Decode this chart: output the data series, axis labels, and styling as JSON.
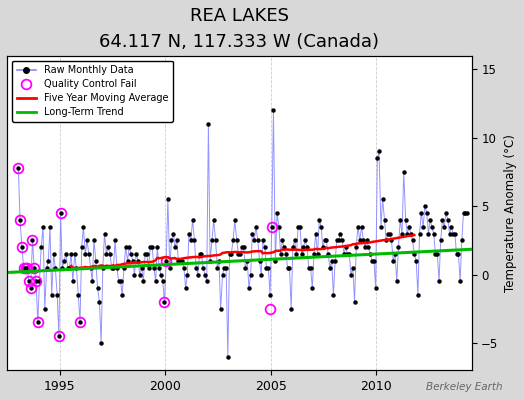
{
  "title": "REA LAKES",
  "subtitle": "64.117 N, 117.333 W (Canada)",
  "ylabel": "Temperature Anomaly (°C)",
  "watermark": "Berkeley Earth",
  "ylim": [
    -7,
    16
  ],
  "yticks": [
    -5,
    0,
    5,
    10,
    15
  ],
  "xlim": [
    1992.5,
    2014.5
  ],
  "xticks": [
    1995,
    2000,
    2005,
    2010
  ],
  "bg_color": "#d8d8d8",
  "plot_bg_color": "#ffffff",
  "raw_line_color": "#8888ff",
  "raw_marker_color": "#000000",
  "qc_fail_color": "#ff00ff",
  "moving_avg_color": "#ff0000",
  "trend_color": "#00bb00",
  "grid_color": "#cccccc",
  "title_fontsize": 13,
  "subtitle_fontsize": 10,
  "raw_data_times": [
    1993.04,
    1993.12,
    1993.21,
    1993.29,
    1993.38,
    1993.46,
    1993.54,
    1993.62,
    1993.71,
    1993.79,
    1993.88,
    1993.96,
    1994.04,
    1994.12,
    1994.21,
    1994.29,
    1994.38,
    1994.46,
    1994.54,
    1994.62,
    1994.71,
    1994.79,
    1994.88,
    1994.96,
    1995.04,
    1995.12,
    1995.21,
    1995.29,
    1995.38,
    1995.46,
    1995.54,
    1995.62,
    1995.71,
    1995.79,
    1995.88,
    1995.96,
    1996.04,
    1996.12,
    1996.21,
    1996.29,
    1996.38,
    1996.46,
    1996.54,
    1996.62,
    1996.71,
    1996.79,
    1996.88,
    1996.96,
    1997.04,
    1997.12,
    1997.21,
    1997.29,
    1997.38,
    1997.46,
    1997.54,
    1997.62,
    1997.71,
    1997.79,
    1997.88,
    1997.96,
    1998.04,
    1998.12,
    1998.21,
    1998.29,
    1998.38,
    1998.46,
    1998.54,
    1998.62,
    1998.71,
    1998.79,
    1998.88,
    1998.96,
    1999.04,
    1999.12,
    1999.21,
    1999.29,
    1999.38,
    1999.46,
    1999.54,
    1999.62,
    1999.71,
    1999.79,
    1999.88,
    1999.96,
    2000.04,
    2000.12,
    2000.21,
    2000.29,
    2000.38,
    2000.46,
    2000.54,
    2000.62,
    2000.71,
    2000.79,
    2000.88,
    2000.96,
    2001.04,
    2001.12,
    2001.21,
    2001.29,
    2001.38,
    2001.46,
    2001.54,
    2001.62,
    2001.71,
    2001.79,
    2001.88,
    2001.96,
    2002.04,
    2002.12,
    2002.21,
    2002.29,
    2002.38,
    2002.46,
    2002.54,
    2002.62,
    2002.71,
    2002.79,
    2002.88,
    2002.96,
    2003.04,
    2003.12,
    2003.21,
    2003.29,
    2003.38,
    2003.46,
    2003.54,
    2003.62,
    2003.71,
    2003.79,
    2003.88,
    2003.96,
    2004.04,
    2004.12,
    2004.21,
    2004.29,
    2004.38,
    2004.46,
    2004.54,
    2004.62,
    2004.71,
    2004.79,
    2004.88,
    2004.96,
    2005.04,
    2005.12,
    2005.21,
    2005.29,
    2005.38,
    2005.46,
    2005.54,
    2005.62,
    2005.71,
    2005.79,
    2005.88,
    2005.96,
    2006.04,
    2006.12,
    2006.21,
    2006.29,
    2006.38,
    2006.46,
    2006.54,
    2006.62,
    2006.71,
    2006.79,
    2006.88,
    2006.96,
    2007.04,
    2007.12,
    2007.21,
    2007.29,
    2007.38,
    2007.46,
    2007.54,
    2007.62,
    2007.71,
    2007.79,
    2007.88,
    2007.96,
    2008.04,
    2008.12,
    2008.21,
    2008.29,
    2008.38,
    2008.46,
    2008.54,
    2008.62,
    2008.71,
    2008.79,
    2008.88,
    2008.96,
    2009.04,
    2009.12,
    2009.21,
    2009.29,
    2009.38,
    2009.46,
    2009.54,
    2009.62,
    2009.71,
    2009.79,
    2009.88,
    2009.96,
    2010.04,
    2010.12,
    2010.21,
    2010.29,
    2010.38,
    2010.46,
    2010.54,
    2010.62,
    2010.71,
    2010.79,
    2010.88,
    2010.96,
    2011.04,
    2011.12,
    2011.21,
    2011.29,
    2011.38,
    2011.46,
    2011.54,
    2011.62,
    2011.71,
    2011.79,
    2011.88,
    2011.96,
    2012.04,
    2012.12,
    2012.21,
    2012.29,
    2012.38,
    2012.46,
    2012.54,
    2012.62,
    2012.71,
    2012.79,
    2012.88,
    2012.96,
    2013.04,
    2013.12,
    2013.21,
    2013.29,
    2013.38,
    2013.46,
    2013.54,
    2013.62,
    2013.71,
    2013.79,
    2013.88,
    2013.96,
    2014.04,
    2014.12,
    2014.21,
    2014.29
  ],
  "raw_data_values": [
    7.8,
    4.0,
    2.0,
    0.5,
    0.5,
    0.5,
    -0.5,
    -1.0,
    2.5,
    0.5,
    -0.5,
    -3.5,
    -0.5,
    2.0,
    3.5,
    -2.5,
    0.5,
    1.0,
    3.5,
    -1.5,
    1.5,
    0.5,
    -1.5,
    -4.5,
    4.5,
    0.5,
    1.0,
    1.5,
    0.5,
    0.5,
    1.5,
    -0.5,
    1.5,
    0.5,
    -1.5,
    -3.5,
    2.0,
    3.5,
    1.5,
    2.5,
    1.5,
    0.5,
    -0.5,
    2.5,
    1.0,
    -1.0,
    -2.0,
    -5.0,
    0.5,
    3.0,
    1.5,
    2.0,
    1.5,
    0.5,
    0.5,
    2.5,
    0.5,
    -0.5,
    -0.5,
    -1.5,
    0.5,
    2.0,
    1.0,
    2.0,
    1.5,
    1.0,
    0.0,
    1.5,
    1.0,
    0.0,
    0.5,
    -0.5,
    1.5,
    1.5,
    0.5,
    2.0,
    2.0,
    0.5,
    -0.5,
    2.0,
    0.5,
    0.0,
    -0.5,
    -2.0,
    1.0,
    5.5,
    0.5,
    2.5,
    3.0,
    2.0,
    2.5,
    1.0,
    1.0,
    1.0,
    0.5,
    -1.0,
    0.0,
    3.0,
    2.5,
    4.0,
    2.5,
    0.5,
    0.0,
    1.5,
    1.5,
    0.5,
    0.0,
    -0.5,
    11.0,
    1.0,
    2.5,
    4.0,
    2.5,
    0.5,
    1.0,
    -2.5,
    0.0,
    0.5,
    0.5,
    -6.0,
    1.5,
    1.5,
    2.5,
    4.0,
    2.5,
    1.5,
    1.5,
    2.0,
    2.0,
    0.5,
    1.0,
    -1.0,
    0.0,
    3.0,
    2.5,
    3.5,
    2.5,
    1.0,
    0.0,
    2.5,
    2.0,
    0.5,
    0.5,
    -1.5,
    3.5,
    12.0,
    1.0,
    4.5,
    3.5,
    1.5,
    2.5,
    2.0,
    1.5,
    0.5,
    0.5,
    -2.5,
    2.0,
    2.5,
    1.5,
    3.5,
    3.5,
    1.5,
    2.0,
    2.5,
    2.0,
    0.5,
    0.5,
    -1.0,
    1.5,
    3.0,
    1.5,
    4.0,
    3.5,
    2.0,
    2.5,
    2.5,
    1.5,
    0.5,
    1.0,
    -1.5,
    1.0,
    2.5,
    2.5,
    3.0,
    2.5,
    1.5,
    2.0,
    1.5,
    1.5,
    0.0,
    0.5,
    -2.0,
    2.0,
    3.5,
    2.5,
    3.5,
    2.5,
    2.0,
    2.5,
    2.0,
    1.5,
    1.0,
    1.0,
    -1.0,
    8.5,
    9.0,
    3.5,
    5.5,
    4.0,
    2.5,
    3.0,
    3.0,
    2.5,
    1.0,
    1.5,
    -0.5,
    2.0,
    4.0,
    3.0,
    7.5,
    4.0,
    3.0,
    3.5,
    3.0,
    2.5,
    1.5,
    1.0,
    -1.5,
    3.0,
    4.5,
    3.5,
    5.0,
    4.5,
    3.0,
    4.0,
    3.5,
    3.0,
    1.5,
    1.5,
    -0.5,
    2.5,
    4.0,
    3.5,
    4.5,
    4.0,
    3.0,
    3.5,
    3.0,
    3.0,
    1.5,
    1.5,
    -0.5,
    2.5,
    4.5,
    4.5,
    4.5
  ],
  "qc_fail_times": [
    1993.04,
    1993.12,
    1993.21,
    1993.29,
    1993.38,
    1993.46,
    1993.54,
    1993.62,
    1993.71,
    1993.79,
    1993.88,
    1993.96,
    1994.96,
    1995.04,
    1995.96,
    1999.96,
    2000.04,
    2004.96,
    2005.04
  ],
  "qc_fail_values": [
    7.8,
    4.0,
    2.0,
    0.5,
    0.5,
    0.5,
    -0.5,
    -1.0,
    2.5,
    0.5,
    -0.5,
    -3.5,
    -4.5,
    4.5,
    -3.5,
    -2.0,
    1.0,
    -2.5,
    3.5
  ],
  "trend_x": [
    1992.5,
    2014.5
  ],
  "trend_y": [
    0.15,
    1.85
  ]
}
